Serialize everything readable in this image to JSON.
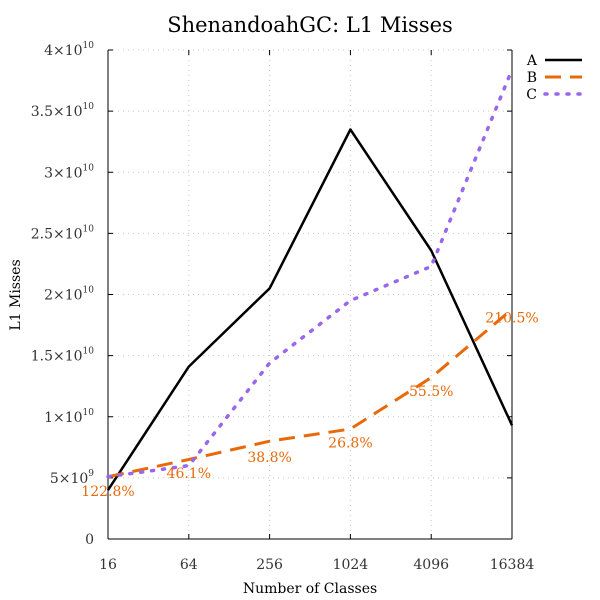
{
  "chart_data": {
    "type": "line",
    "title": "ShenandoahGC: L1 Misses",
    "xlabel": "Number of Classes",
    "ylabel": "L1 Misses",
    "x": [
      16,
      64,
      256,
      1024,
      4096,
      16384
    ],
    "x_scale": "log2",
    "xlim": [
      16,
      16384
    ],
    "ylim": [
      0,
      40000000000
    ],
    "y_ticks": [
      {
        "value": 0,
        "mant": "0",
        "exp": ""
      },
      {
        "value": 5000000000,
        "mant": "5×10",
        "exp": "9"
      },
      {
        "value": 10000000000,
        "mant": "1×10",
        "exp": "10"
      },
      {
        "value": 15000000000,
        "mant": "1.5×10",
        "exp": "10"
      },
      {
        "value": 20000000000,
        "mant": "2×10",
        "exp": "10"
      },
      {
        "value": 25000000000,
        "mant": "2.5×10",
        "exp": "10"
      },
      {
        "value": 30000000000,
        "mant": "3×10",
        "exp": "10"
      },
      {
        "value": 35000000000,
        "mant": "3.5×10",
        "exp": "10"
      },
      {
        "value": 40000000000,
        "mant": "4×10",
        "exp": "10"
      }
    ],
    "x_ticks": [
      "16",
      "64",
      "256",
      "1024",
      "4096",
      "16384"
    ],
    "grid": true,
    "legend_position": "top-right",
    "series": [
      {
        "name": "A",
        "color": "#000000",
        "dash": "solid",
        "values": [
          4000000000,
          14100000000,
          20500000000,
          33500000000,
          23600000000,
          9300000000
        ]
      },
      {
        "name": "B",
        "color": "#e8690a",
        "dash": "dashed",
        "values": [
          5100000000,
          6500000000,
          8000000000,
          9000000000,
          13200000000,
          18800000000
        ]
      },
      {
        "name": "C",
        "color": "#9966ee",
        "dash": "dotted",
        "values": [
          5100000000,
          6000000000,
          14400000000,
          19500000000,
          22300000000,
          38400000000
        ]
      }
    ],
    "annotations": [
      {
        "text": "122.8%",
        "x": 16,
        "y": 3500000000,
        "color": "#e8690a"
      },
      {
        "text": "46.1%",
        "x": 64,
        "y": 5000000000,
        "color": "#e8690a"
      },
      {
        "text": "38.8%",
        "x": 256,
        "y": 6300000000,
        "color": "#e8690a"
      },
      {
        "text": "26.8%",
        "x": 1024,
        "y": 7500000000,
        "color": "#e8690a"
      },
      {
        "text": "55.5%",
        "x": 4096,
        "y": 11700000000,
        "color": "#e8690a"
      },
      {
        "text": "210.5%",
        "x": 16384,
        "y": 17700000000,
        "color": "#e8690a"
      }
    ]
  }
}
